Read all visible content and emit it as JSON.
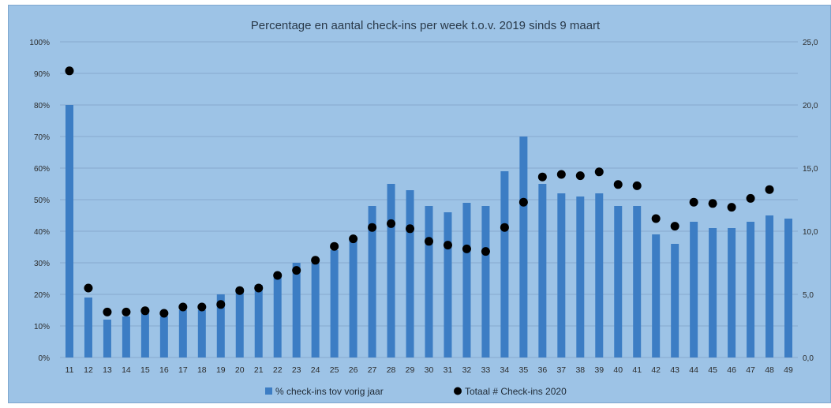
{
  "chart_data": {
    "type": "bar",
    "title": "Percentage en aantal check-ins per week t.o.v. 2019 sinds 9 maart",
    "categories": [
      "11",
      "12",
      "13",
      "14",
      "15",
      "16",
      "17",
      "18",
      "19",
      "20",
      "21",
      "22",
      "23",
      "24",
      "25",
      "26",
      "27",
      "28",
      "29",
      "30",
      "31",
      "32",
      "33",
      "34",
      "35",
      "36",
      "37",
      "38",
      "39",
      "40",
      "41",
      "42",
      "43",
      "44",
      "45",
      "46",
      "47",
      "48",
      "49"
    ],
    "y_left": {
      "ticks": [
        "0%",
        "10%",
        "20%",
        "30%",
        "40%",
        "50%",
        "60%",
        "70%",
        "80%",
        "90%",
        "100%"
      ],
      "range": [
        0,
        100
      ]
    },
    "y_right": {
      "ticks": [
        "0,0",
        "5,0",
        "10,0",
        "15,0",
        "20,0",
        "25,0"
      ],
      "range": [
        0,
        25
      ]
    },
    "grid": true,
    "legend_position": "bottom",
    "series": [
      {
        "name": "% check-ins tov vorig jaar",
        "kind": "bar",
        "axis": "left",
        "color": "#3c7dc4",
        "values": [
          80,
          19,
          12,
          13,
          14,
          13,
          15,
          15,
          20,
          21,
          23,
          26,
          30,
          30,
          34,
          38,
          48,
          55,
          53,
          48,
          46,
          49,
          48,
          59,
          70,
          55,
          52,
          51,
          52,
          48,
          48,
          39,
          36,
          43,
          41,
          41,
          43,
          45,
          44
        ]
      },
      {
        "name": "Totaal # Check-ins 2020",
        "kind": "scatter",
        "axis": "right",
        "color": "#000000",
        "values": [
          22.7,
          5.5,
          3.6,
          3.6,
          3.7,
          3.5,
          4.0,
          4.0,
          4.2,
          5.3,
          5.5,
          6.5,
          6.9,
          7.7,
          8.8,
          9.4,
          10.3,
          10.6,
          10.2,
          9.2,
          8.9,
          8.6,
          8.4,
          10.3,
          12.3,
          14.3,
          14.5,
          14.4,
          14.7,
          13.7,
          13.6,
          11.0,
          10.4,
          12.3,
          12.2,
          11.9,
          12.6,
          13.3,
          null
        ]
      }
    ]
  }
}
